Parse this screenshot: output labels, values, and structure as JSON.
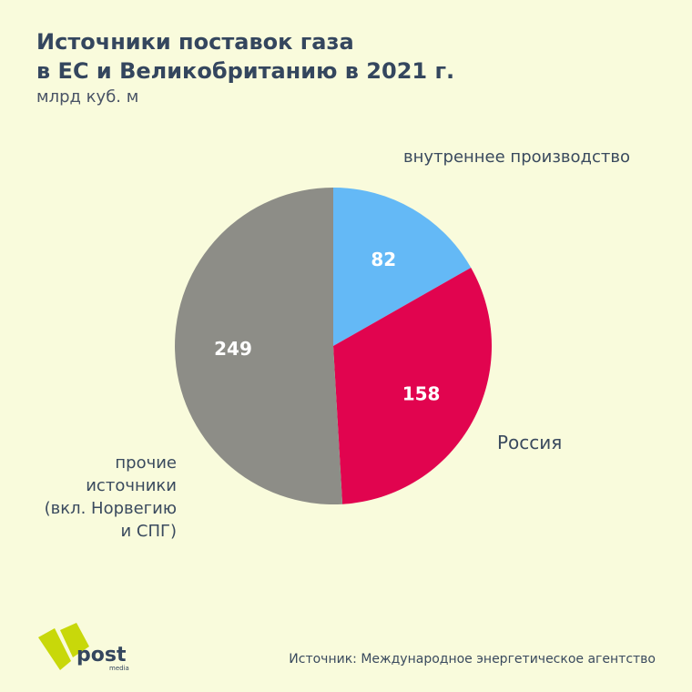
{
  "header": {
    "title_line1": "Источники поставок газа",
    "title_line2": "в ЕС и Великобританию в 2021 г.",
    "subtitle": "млрд куб. м"
  },
  "chart_data": {
    "type": "pie",
    "title": "Источники поставок газа в ЕС и Великобританию в 2021 г.",
    "unit": "млрд куб. м",
    "start_angle_deg": 0,
    "direction": "clockwise",
    "slices": [
      {
        "label": "внутреннее производство",
        "value": 82,
        "value_label": "82",
        "color": "#64b9f6"
      },
      {
        "label": "Россия",
        "value": 158,
        "value_label": "158",
        "color": "#e1044f"
      },
      {
        "label": "прочие источники (вкл. Норвегию и СПГ)",
        "value": 249,
        "value_label": "249",
        "color": "#8d8d87"
      }
    ]
  },
  "labels": {
    "domestic": "внутреннее производство",
    "russia": "Россия",
    "other_line1": "прочие",
    "other_line2": "источники",
    "other_line3": "(вкл. Норвегию",
    "other_line4": "и СПГ)"
  },
  "footer": {
    "logo_text": "post",
    "logo_subtext": "media",
    "logo_color": "#c8d80a",
    "source": "Источник: Международное энергетическое агентство"
  }
}
